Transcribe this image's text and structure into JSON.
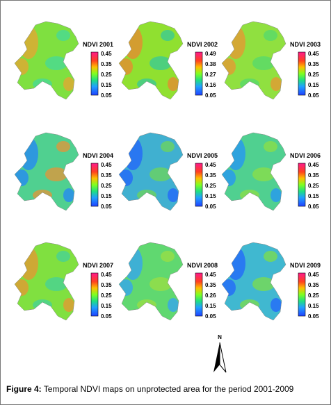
{
  "panels": [
    {
      "title": "NDVI 2001",
      "legend": [
        "0.45",
        "0.35",
        "0.25",
        "0.15",
        "0.05"
      ]
    },
    {
      "title": "NDVI 2002",
      "legend": [
        "0.49",
        "0.38",
        "0.27",
        "0.16",
        "0.05"
      ]
    },
    {
      "title": "NDVI 2003",
      "legend": [
        "0.45",
        "0.35",
        "0.25",
        "0.15",
        "0.05"
      ]
    },
    {
      "title": "NDVI 2004",
      "legend": [
        "0.45",
        "0.35",
        "0.25",
        "0.15",
        "0.05"
      ]
    },
    {
      "title": "NDVI 2005",
      "legend": [
        "0.45",
        "0.35",
        "0.25",
        "0.15",
        "0.05"
      ]
    },
    {
      "title": "NDVI 2006",
      "legend": [
        "0.45",
        "0.35",
        "0.25",
        "0.15",
        "0.05"
      ]
    },
    {
      "title": "NDVI 2007",
      "legend": [
        "0.45",
        "0.35",
        "0.25",
        "0.15",
        "0.05"
      ]
    },
    {
      "title": "NDVI 2008",
      "legend": [
        "0.45",
        "0.35",
        "0.26",
        "0.15",
        "0.05"
      ]
    },
    {
      "title": "NDVI 2009",
      "legend": [
        "0.45",
        "0.35",
        "0.25",
        "0.15",
        "0.05"
      ]
    }
  ],
  "north": "N",
  "caption": {
    "label": "Figure 4:",
    "text": "Temporal NDVI maps on unprotected area for the period 2001-2009"
  }
}
